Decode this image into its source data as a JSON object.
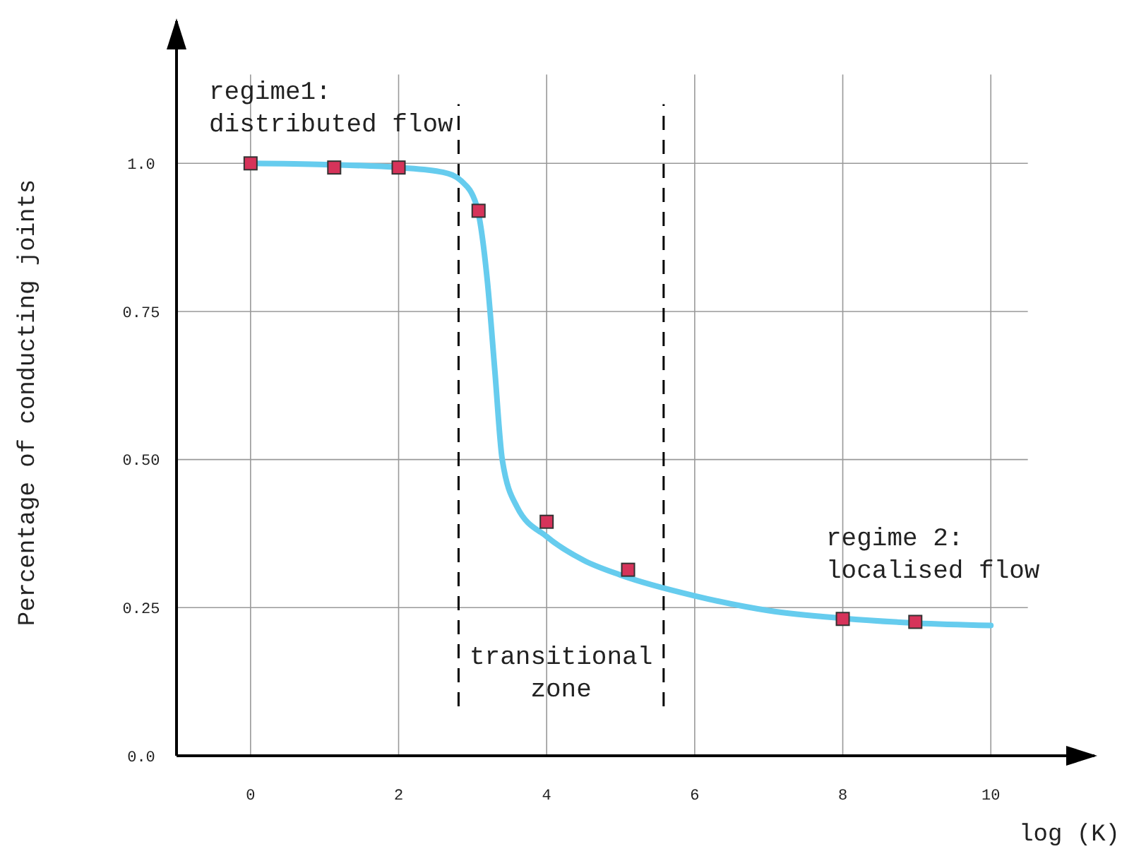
{
  "chart_data": {
    "type": "scatter",
    "xlabel": "log (K)",
    "ylabel": "Percentage of conducting joints",
    "xlim": [
      -1,
      11.4
    ],
    "ylim": [
      0,
      1.24
    ],
    "xticks": [
      0,
      2,
      4,
      6,
      8,
      10
    ],
    "yticks": [
      {
        "value": 0,
        "label": "0.0"
      },
      {
        "value": 0.25,
        "label": "0.25"
      },
      {
        "value": 0.5,
        "label": "0.50"
      },
      0.75,
      {
        "value": 1,
        "label": "1.0"
      }
    ],
    "grid": true,
    "marker": "square",
    "series": [
      {
        "type": "line",
        "color": "#66ccee",
        "marker": "none",
        "line_style": "solid",
        "x": [
          0,
          1,
          2,
          2.6,
          2.85,
          3.05,
          3.2,
          3.3,
          3.4,
          3.6,
          4,
          4.5,
          5,
          6,
          7,
          8,
          9,
          10
        ],
        "values": [
          1.0,
          0.998,
          0.993,
          0.985,
          0.97,
          0.93,
          0.8,
          0.65,
          0.5,
          0.42,
          0.37,
          0.33,
          0.305,
          0.27,
          0.245,
          0.232,
          0.224,
          0.22
        ]
      },
      {
        "color": "#d6335a",
        "x": [
          0,
          1.13,
          2,
          3.08,
          4,
          5.1,
          8,
          8.98
        ],
        "values": [
          1.0,
          0.993,
          0.993,
          0.92,
          0.395,
          0.314,
          0.231,
          0.226
        ]
      }
    ],
    "ref_lines": [
      {
        "axis": "x",
        "value": 2.81,
        "line_style": "dashed",
        "color": "#000000"
      },
      {
        "axis": "x",
        "value": 5.58,
        "line_style": "dashed",
        "color": "#000000"
      }
    ],
    "annotations": [
      "regime1:\ndistributed flow",
      "transitional\nzone",
      "regime 2:\nlocalised flow"
    ]
  }
}
